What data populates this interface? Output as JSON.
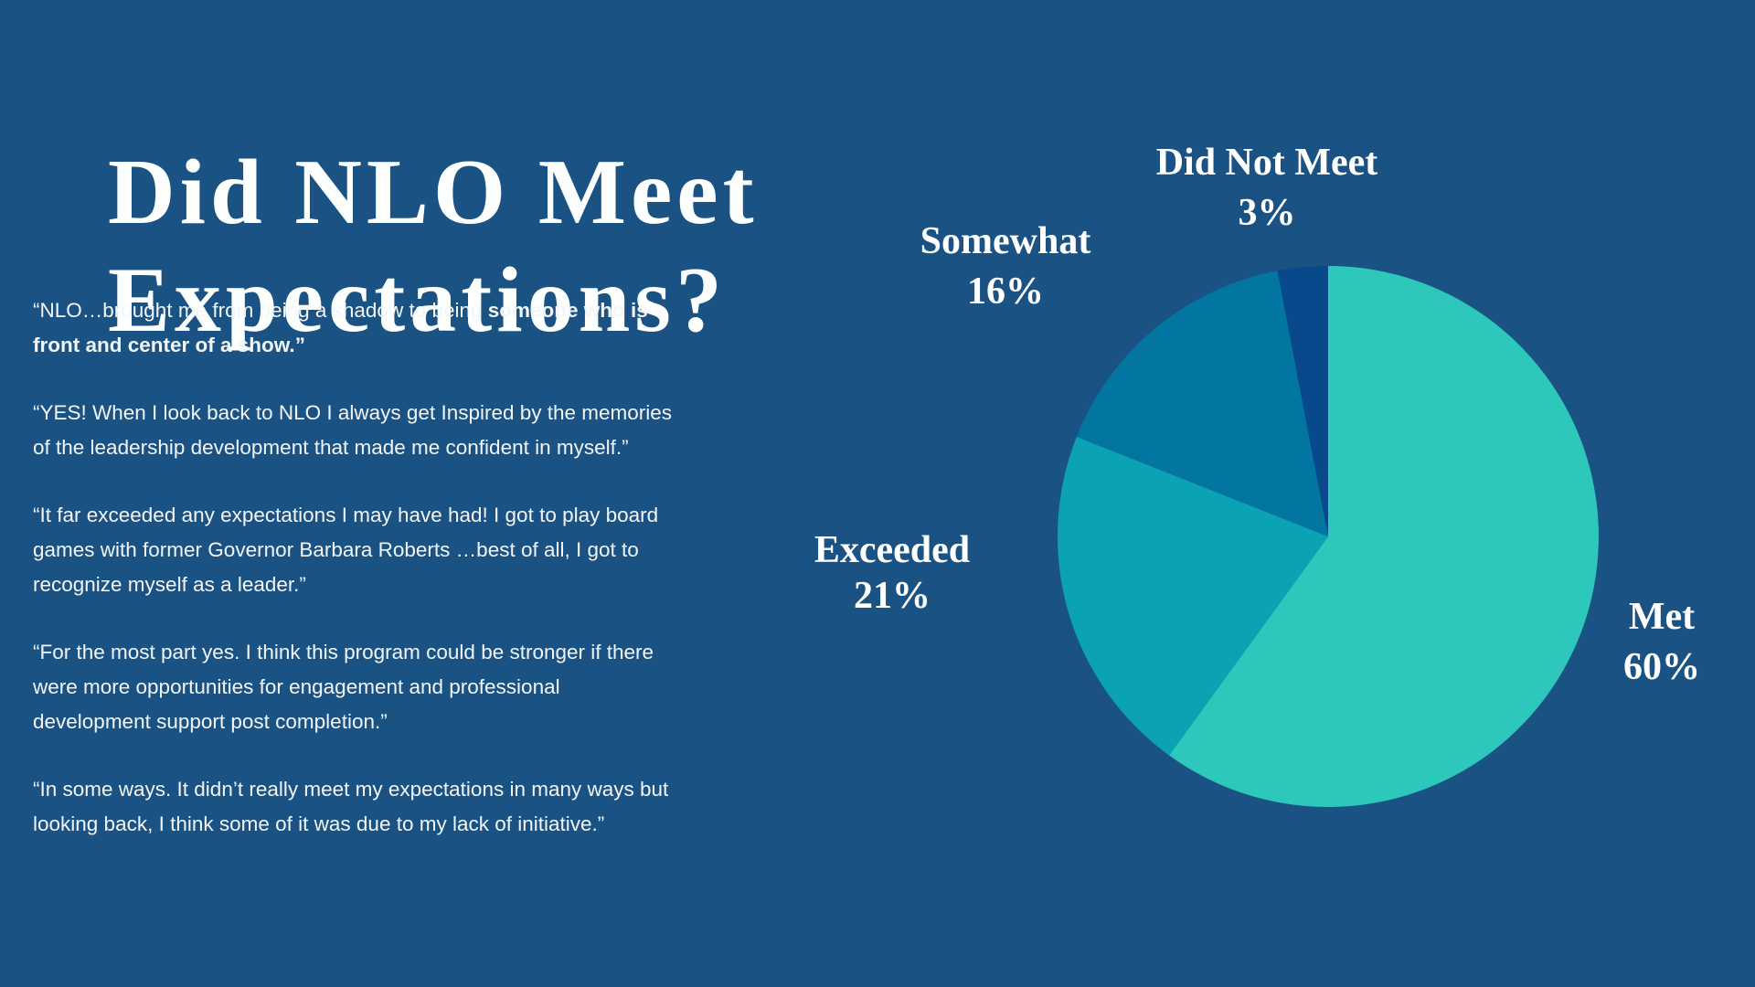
{
  "page": {
    "background_color": "#1A5283",
    "text_color": "#F2F6F9",
    "label_color": "#FFFFFF"
  },
  "title": {
    "lines": [
      "Did NLO Meet",
      "Expectations?"
    ]
  },
  "quotes": {
    "q1": {
      "lead": "“NLO…brought me from being a shadow to being ",
      "bold_line1": "someone who is",
      "bold_line2": "front and center of a show.”"
    },
    "q2": {
      "lines": [
        "“YES! When I look back to NLO I always get Inspired by the memories",
        "of the leadership development that made me confident in myself.”"
      ]
    },
    "q3": {
      "lines": [
        "“It far exceeded any expectations I may have had! I got to play board",
        "games with former Governor Barbara Roberts …best of all, I got to",
        "recognize myself as a leader.”"
      ]
    },
    "q4": {
      "lines": [
        "“For the most part yes. I think this program could be stronger if there",
        "were more opportunities for engagement and professional",
        "development support post completion.”"
      ]
    },
    "q5": {
      "lines": [
        "“In some ways. It didn’t really meet my expectations in many ways but",
        "looking back, I think some of it was due to my lack of initiative.”"
      ]
    }
  },
  "chart_data": {
    "type": "pie",
    "title": "Did NLO Meet Expectations?",
    "unit": "percent",
    "start_angle": "12 o'clock",
    "direction": "clockwise",
    "legend": "none (labels placed around pie)",
    "slices": [
      {
        "label": "Met",
        "value": 60,
        "pct_label": "60%",
        "color": "#2DC7BC"
      },
      {
        "label": "Exceeded",
        "value": 21,
        "pct_label": "21%",
        "color": "#0BA3B3"
      },
      {
        "label": "Somewhat",
        "value": 16,
        "pct_label": "16%",
        "color": "#0276A1"
      },
      {
        "label": "Did Not Meet",
        "value": 3,
        "pct_label": "3%",
        "color": "#07498A"
      }
    ]
  }
}
